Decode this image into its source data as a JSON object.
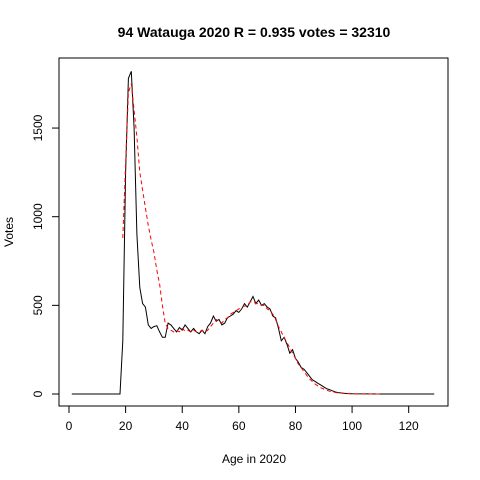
{
  "chart_data": {
    "type": "line",
    "title": "94 Watauga 2020 R = 0.935 votes = 32310",
    "xlabel": "Age in 2020",
    "ylabel": "Votes",
    "xlim": [
      0,
      130
    ],
    "ylim": [
      0,
      1850
    ],
    "xticks": [
      0,
      20,
      40,
      60,
      80,
      100,
      120
    ],
    "yticks": [
      0,
      500,
      1000,
      1500
    ],
    "grid": false,
    "series": [
      {
        "style": "solid",
        "color": "#000000",
        "points": [
          [
            1,
            0
          ],
          [
            18,
            0
          ],
          [
            19,
            300
          ],
          [
            20,
            1250
          ],
          [
            21,
            1780
          ],
          [
            22,
            1820
          ],
          [
            23,
            1500
          ],
          [
            24,
            900
          ],
          [
            25,
            600
          ],
          [
            26,
            510
          ],
          [
            27,
            490
          ],
          [
            28,
            390
          ],
          [
            29,
            370
          ],
          [
            30,
            380
          ],
          [
            31,
            385
          ],
          [
            32,
            350
          ],
          [
            33,
            320
          ],
          [
            34,
            320
          ],
          [
            35,
            400
          ],
          [
            36,
            390
          ],
          [
            37,
            370
          ],
          [
            38,
            350
          ],
          [
            39,
            375
          ],
          [
            40,
            360
          ],
          [
            41,
            390
          ],
          [
            42,
            370
          ],
          [
            43,
            350
          ],
          [
            44,
            370
          ],
          [
            45,
            350
          ],
          [
            46,
            340
          ],
          [
            47,
            360
          ],
          [
            48,
            340
          ],
          [
            49,
            380
          ],
          [
            50,
            400
          ],
          [
            51,
            440
          ],
          [
            52,
            410
          ],
          [
            53,
            420
          ],
          [
            54,
            390
          ],
          [
            55,
            400
          ],
          [
            56,
            430
          ],
          [
            57,
            440
          ],
          [
            58,
            450
          ],
          [
            59,
            470
          ],
          [
            60,
            460
          ],
          [
            61,
            480
          ],
          [
            62,
            510
          ],
          [
            63,
            490
          ],
          [
            64,
            520
          ],
          [
            65,
            550
          ],
          [
            66,
            510
          ],
          [
            67,
            530
          ],
          [
            68,
            500
          ],
          [
            69,
            510
          ],
          [
            70,
            490
          ],
          [
            71,
            480
          ],
          [
            72,
            440
          ],
          [
            73,
            430
          ],
          [
            74,
            370
          ],
          [
            75,
            300
          ],
          [
            76,
            320
          ],
          [
            77,
            280
          ],
          [
            78,
            230
          ],
          [
            79,
            250
          ],
          [
            80,
            200
          ],
          [
            81,
            180
          ],
          [
            82,
            150
          ],
          [
            83,
            140
          ],
          [
            84,
            120
          ],
          [
            85,
            100
          ],
          [
            86,
            80
          ],
          [
            87,
            70
          ],
          [
            88,
            60
          ],
          [
            89,
            50
          ],
          [
            90,
            40
          ],
          [
            91,
            30
          ],
          [
            92,
            25
          ],
          [
            93,
            18
          ],
          [
            94,
            12
          ],
          [
            95,
            8
          ],
          [
            96,
            6
          ],
          [
            97,
            4
          ],
          [
            98,
            3
          ],
          [
            99,
            2
          ],
          [
            100,
            1
          ],
          [
            110,
            0
          ],
          [
            129,
            0
          ]
        ]
      },
      {
        "style": "dashed",
        "color": "#ff0000",
        "points": [
          [
            19,
            880
          ],
          [
            20,
            1300
          ],
          [
            21,
            1700
          ],
          [
            22,
            1750
          ],
          [
            23,
            1600
          ],
          [
            24,
            1450
          ],
          [
            25,
            1250
          ],
          [
            26,
            1150
          ],
          [
            27,
            1050
          ],
          [
            28,
            950
          ],
          [
            29,
            870
          ],
          [
            30,
            800
          ],
          [
            31,
            700
          ],
          [
            32,
            620
          ],
          [
            33,
            500
          ],
          [
            34,
            400
          ],
          [
            35,
            370
          ],
          [
            36,
            360
          ],
          [
            37,
            350
          ],
          [
            38,
            360
          ],
          [
            39,
            350
          ],
          [
            40,
            370
          ],
          [
            41,
            355
          ],
          [
            42,
            360
          ],
          [
            43,
            350
          ],
          [
            44,
            360
          ],
          [
            45,
            350
          ],
          [
            46,
            350
          ],
          [
            47,
            360
          ],
          [
            48,
            350
          ],
          [
            49,
            360
          ],
          [
            50,
            380
          ],
          [
            51,
            400
          ],
          [
            52,
            420
          ],
          [
            53,
            410
          ],
          [
            54,
            400
          ],
          [
            55,
            420
          ],
          [
            56,
            430
          ],
          [
            57,
            450
          ],
          [
            58,
            460
          ],
          [
            59,
            470
          ],
          [
            60,
            480
          ],
          [
            61,
            490
          ],
          [
            62,
            495
          ],
          [
            63,
            500
          ],
          [
            64,
            520
          ],
          [
            65,
            520
          ],
          [
            66,
            510
          ],
          [
            67,
            510
          ],
          [
            68,
            500
          ],
          [
            69,
            500
          ],
          [
            70,
            480
          ],
          [
            71,
            470
          ],
          [
            72,
            450
          ],
          [
            73,
            420
          ],
          [
            74,
            380
          ],
          [
            75,
            350
          ],
          [
            76,
            320
          ],
          [
            77,
            290
          ],
          [
            78,
            260
          ],
          [
            79,
            230
          ],
          [
            80,
            200
          ],
          [
            81,
            170
          ],
          [
            82,
            150
          ],
          [
            83,
            125
          ],
          [
            84,
            105
          ],
          [
            85,
            85
          ],
          [
            86,
            70
          ],
          [
            87,
            55
          ],
          [
            88,
            45
          ],
          [
            89,
            35
          ],
          [
            90,
            28
          ],
          [
            91,
            22
          ],
          [
            92,
            16
          ],
          [
            93,
            12
          ],
          [
            94,
            9
          ],
          [
            95,
            6
          ],
          [
            96,
            5
          ],
          [
            97,
            4
          ],
          [
            98,
            3
          ],
          [
            99,
            2
          ],
          [
            100,
            1
          ],
          [
            105,
            0
          ],
          [
            110,
            0
          ]
        ]
      }
    ]
  }
}
